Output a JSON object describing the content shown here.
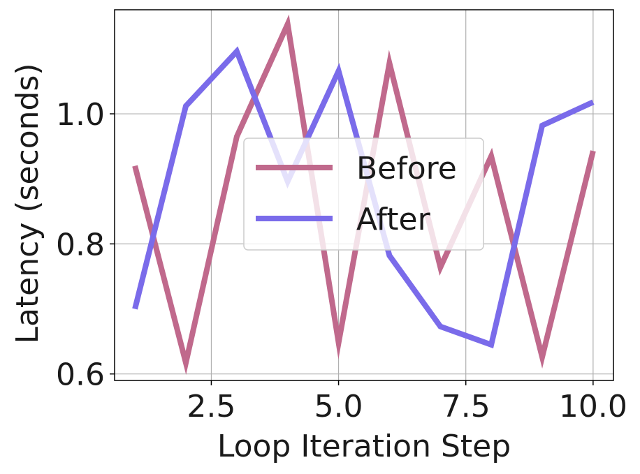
{
  "chart_data": {
    "type": "line",
    "title": "",
    "xlabel": "Loop Iteration Step",
    "ylabel": "Latency (seconds)",
    "x": [
      1,
      2,
      3,
      4,
      5,
      6,
      7,
      8,
      9,
      10
    ],
    "xlim": [
      0.6,
      10.4
    ],
    "ylim": [
      0.59,
      1.16
    ],
    "xticks": [
      2.5,
      5.0,
      7.5,
      10.0
    ],
    "xtick_labels": [
      "2.5",
      "5.0",
      "7.5",
      "10.0"
    ],
    "yticks": [
      0.6,
      0.8,
      1.0
    ],
    "ytick_labels": [
      "0.6",
      "0.8",
      "1.0"
    ],
    "grid": true,
    "legend_position": "center",
    "series": [
      {
        "name": "Before",
        "color": "#c0698c",
        "values": [
          0.92,
          0.617,
          0.965,
          1.138,
          0.648,
          1.078,
          0.764,
          0.935,
          0.626,
          0.943
        ]
      },
      {
        "name": "After",
        "color": "#7a6bea",
        "values": [
          0.7,
          1.012,
          1.096,
          0.896,
          1.066,
          0.782,
          0.673,
          0.645,
          0.982,
          1.018
        ]
      }
    ]
  }
}
